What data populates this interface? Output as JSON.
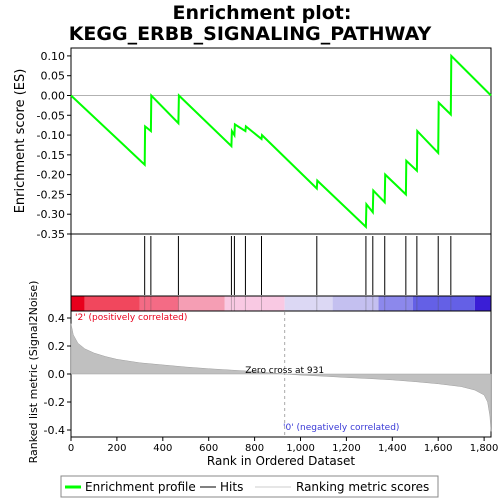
{
  "chart_data": {
    "type": "line",
    "title": "Enrichment plot:",
    "subtitle": "KEGG_ERBB_SIGNALING_PATHWAY",
    "xlabel": "Rank in Ordered Dataset",
    "ylabel_top": "Enrichment score (ES)",
    "ylabel_bottom": "Ranked list metric (Signal2Noise)",
    "xlim": [
      0,
      1830
    ],
    "top_ylim": [
      -0.35,
      0.12
    ],
    "bottom_ylim": [
      -0.45,
      0.45
    ],
    "x_ticks": [
      0,
      200,
      400,
      600,
      800,
      "1,000",
      "1,200",
      "1,400",
      "1,600",
      "1,800"
    ],
    "top_y_ticks": [
      "0.10",
      "0.05",
      "0.00",
      "-0.05",
      "-0.10",
      "-0.15",
      "-0.20",
      "-0.25",
      "-0.30",
      "-0.35"
    ],
    "bottom_y_ticks": [
      "0.4",
      "0.2",
      "0.0",
      "-0.2",
      "-0.4"
    ],
    "es_series": {
      "name": "Enrichment profile",
      "color": "#00ff00",
      "x": [
        0,
        321,
        323,
        348,
        350,
        468,
        470,
        699,
        701,
        712,
        714,
        760,
        762,
        830,
        832,
        1071,
        1073,
        1285,
        1287,
        1315,
        1317,
        1367,
        1369,
        1459,
        1461,
        1507,
        1509,
        1600,
        1602,
        1655,
        1657,
        1830
      ],
      "y": [
        0.0,
        -0.175,
        -0.078,
        -0.09,
        0.0,
        -0.07,
        0.0,
        -0.128,
        -0.09,
        -0.1,
        -0.073,
        -0.09,
        -0.078,
        -0.11,
        -0.1,
        -0.235,
        -0.215,
        -0.332,
        -0.275,
        -0.295,
        -0.24,
        -0.27,
        -0.2,
        -0.25,
        -0.165,
        -0.19,
        -0.09,
        -0.145,
        -0.018,
        -0.048,
        0.1,
        0.0
      ]
    },
    "hits": [
      321,
      348,
      468,
      699,
      712,
      760,
      830,
      1071,
      1285,
      1315,
      1367,
      1459,
      1507,
      1600,
      1655
    ],
    "zero_cross_label": "Zero cross at 931",
    "zero_cross_x": 931,
    "pos_label": "'2' (positively correlated)",
    "neg_label": "'0' (negatively correlated)",
    "metric_profile": {
      "x": [
        0,
        10,
        30,
        60,
        100,
        150,
        200,
        300,
        400,
        500,
        600,
        700,
        800,
        931,
        1000,
        1100,
        1200,
        1300,
        1400,
        1500,
        1600,
        1700,
        1760,
        1800,
        1815,
        1825,
        1830
      ],
      "y": [
        0.36,
        0.28,
        0.22,
        0.18,
        0.15,
        0.125,
        0.105,
        0.08,
        0.065,
        0.05,
        0.038,
        0.028,
        0.018,
        0.0,
        -0.008,
        -0.016,
        -0.025,
        -0.033,
        -0.042,
        -0.055,
        -0.07,
        -0.09,
        -0.115,
        -0.15,
        -0.2,
        -0.3,
        -0.41
      ]
    },
    "heat_bands": [
      {
        "x0": 0,
        "x1": 60,
        "color": "#e8001c"
      },
      {
        "x0": 60,
        "x1": 300,
        "color": "#f1475d"
      },
      {
        "x0": 300,
        "x1": 470,
        "color": "#f46b85"
      },
      {
        "x0": 470,
        "x1": 670,
        "color": "#f59eb4"
      },
      {
        "x0": 670,
        "x1": 931,
        "color": "#f9c9e3"
      },
      {
        "x0": 931,
        "x1": 1140,
        "color": "#dcd8f4"
      },
      {
        "x0": 1140,
        "x1": 1340,
        "color": "#c4c0f0"
      },
      {
        "x0": 1340,
        "x1": 1490,
        "color": "#8c88ec"
      },
      {
        "x0": 1490,
        "x1": 1760,
        "color": "#6460e6"
      },
      {
        "x0": 1760,
        "x1": 1830,
        "color": "#3a1ed6"
      }
    ],
    "legend": [
      {
        "label": "Enrichment profile",
        "color": "#00ff00"
      },
      {
        "label": "Hits",
        "color": "#000000"
      },
      {
        "label": "Ranking metric scores",
        "color": "#bbbbbb"
      }
    ],
    "legend_placement": "bottom"
  }
}
